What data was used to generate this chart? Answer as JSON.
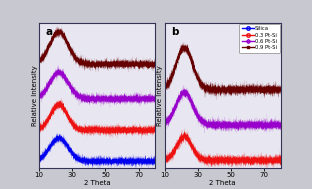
{
  "title_a": "a",
  "title_b": "b",
  "xlabel": "2 Theta",
  "ylabel": "Relative Intensity",
  "xlim": [
    10,
    80
  ],
  "x_ticks": [
    10,
    30,
    50,
    70
  ],
  "colors": {
    "silica": "#0000ee",
    "pt03": "#ee1111",
    "pt06": "#9900cc",
    "pt09": "#660000"
  },
  "legend_labels": [
    "Silica",
    "0.3 Pt-Si",
    "0.6 Pt-Si",
    "0.9 Pt-Si"
  ],
  "bg_outer": "#c8c8d0",
  "bg_inner": "#e8e6f0",
  "border_color": "#333355"
}
